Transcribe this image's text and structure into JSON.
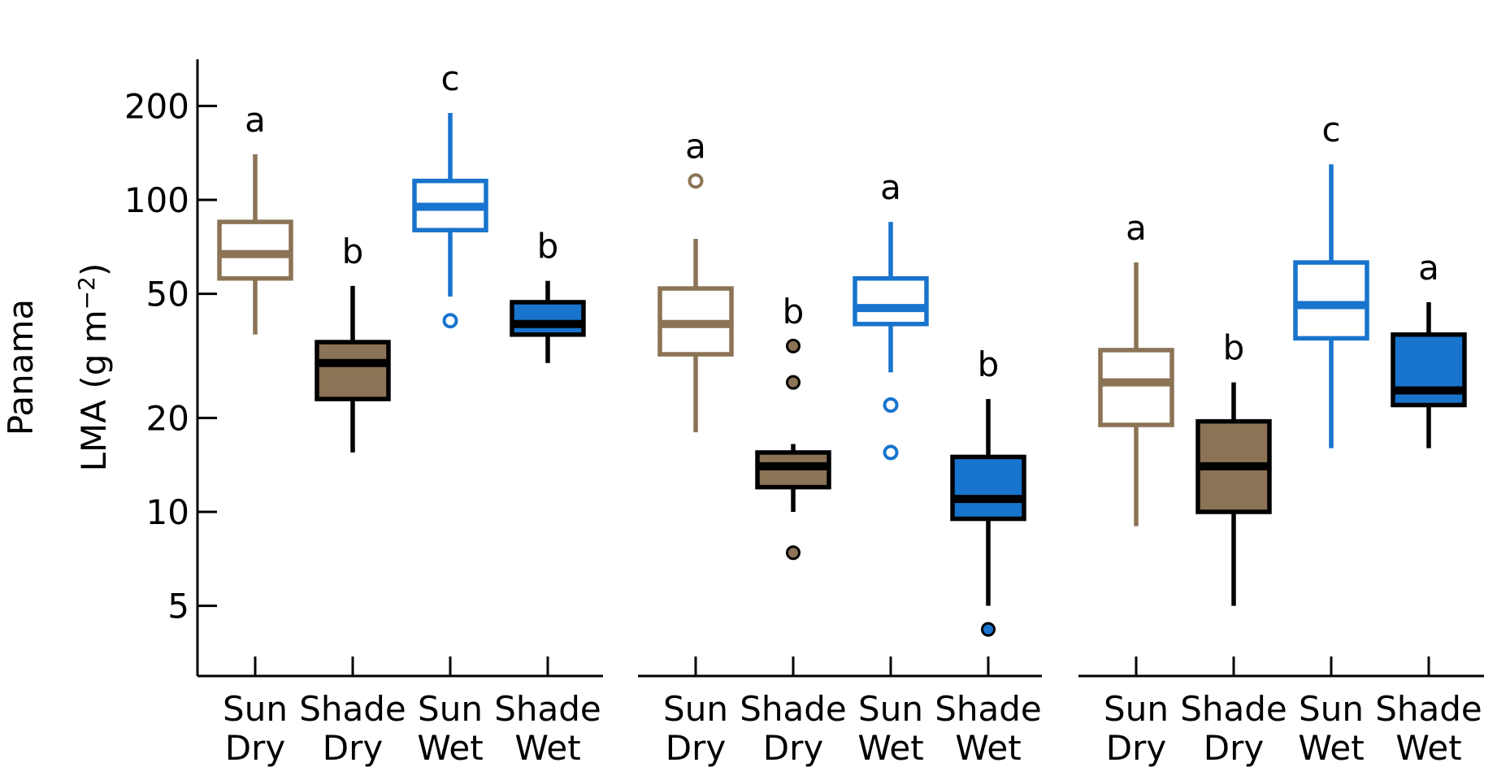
{
  "chart_data": {
    "type": "boxplot",
    "ylabel_row": "Panama",
    "ylabel_main": "LMA",
    "ylabel_unit_prefix": "(g m",
    "ylabel_unit_exp": "−2",
    "ylabel_unit_suffix": ")",
    "yscale": "log",
    "ylim": [
      3,
      300
    ],
    "yticks": [
      5,
      10,
      20,
      50,
      100,
      200
    ],
    "colors": {
      "dry": "#8B7355",
      "wet": "#1874CD",
      "line_dark": "#000000"
    },
    "categories": [
      {
        "line1": "Sun",
        "line2": "Dry"
      },
      {
        "line1": "Shade",
        "line2": "Dry"
      },
      {
        "line1": "Sun",
        "line2": "Wet"
      },
      {
        "line1": "Shade",
        "line2": "Wet"
      }
    ],
    "panels": [
      {
        "boxes": [
          {
            "category": "Sun Dry",
            "whisker_low": 37,
            "q1": 56,
            "median": 67,
            "q3": 85,
            "whisker_high": 140,
            "outliers": [],
            "letter": "a",
            "style": "dry-open"
          },
          {
            "category": "Shade Dry",
            "whisker_low": 15.5,
            "q1": 23,
            "median": 30,
            "q3": 35,
            "whisker_high": 53,
            "outliers": [],
            "letter": "b",
            "style": "dry-filled"
          },
          {
            "category": "Sun Wet",
            "whisker_low": 49,
            "q1": 80,
            "median": 95,
            "q3": 115,
            "whisker_high": 190,
            "outliers": [
              41
            ],
            "letter": "c",
            "style": "wet-open"
          },
          {
            "category": "Shade Wet",
            "whisker_low": 30,
            "q1": 37,
            "median": 40,
            "q3": 47,
            "whisker_high": 55,
            "outliers": [],
            "letter": "b",
            "style": "wet-filled"
          }
        ]
      },
      {
        "boxes": [
          {
            "category": "Sun Dry",
            "whisker_low": 18,
            "q1": 32,
            "median": 40,
            "q3": 52,
            "whisker_high": 75,
            "outliers": [
              115
            ],
            "letter": "a",
            "style": "dry-open"
          },
          {
            "category": "Shade Dry",
            "whisker_low": 10,
            "q1": 12,
            "median": 14,
            "q3": 15.5,
            "whisker_high": 16.5,
            "outliers": [
              34,
              26,
              7.4
            ],
            "letter": "b",
            "style": "dry-filled"
          },
          {
            "category": "Sun Wet",
            "whisker_low": 28,
            "q1": 40,
            "median": 45,
            "q3": 56,
            "whisker_high": 85,
            "outliers": [
              22,
              15.5
            ],
            "letter": "a",
            "style": "wet-open"
          },
          {
            "category": "Shade Wet",
            "whisker_low": 5,
            "q1": 9.5,
            "median": 11,
            "q3": 15,
            "whisker_high": 23,
            "outliers": [
              4.2
            ],
            "letter": "b",
            "style": "wet-filled"
          }
        ]
      },
      {
        "boxes": [
          {
            "category": "Sun Dry",
            "whisker_low": 9,
            "q1": 19,
            "median": 26,
            "q3": 33,
            "whisker_high": 63,
            "outliers": [],
            "letter": "a",
            "style": "dry-open"
          },
          {
            "category": "Shade Dry",
            "whisker_low": 5,
            "q1": 10,
            "median": 14,
            "q3": 19.5,
            "whisker_high": 26,
            "outliers": [],
            "letter": "b",
            "style": "dry-filled"
          },
          {
            "category": "Sun Wet",
            "whisker_low": 16,
            "q1": 36,
            "median": 46,
            "q3": 63,
            "whisker_high": 130,
            "outliers": [],
            "letter": "c",
            "style": "wet-open"
          },
          {
            "category": "Shade Wet",
            "whisker_low": 16,
            "q1": 22,
            "median": 24.5,
            "q3": 37,
            "whisker_high": 47,
            "outliers": [],
            "letter": "a",
            "style": "wet-filled"
          }
        ]
      }
    ]
  }
}
